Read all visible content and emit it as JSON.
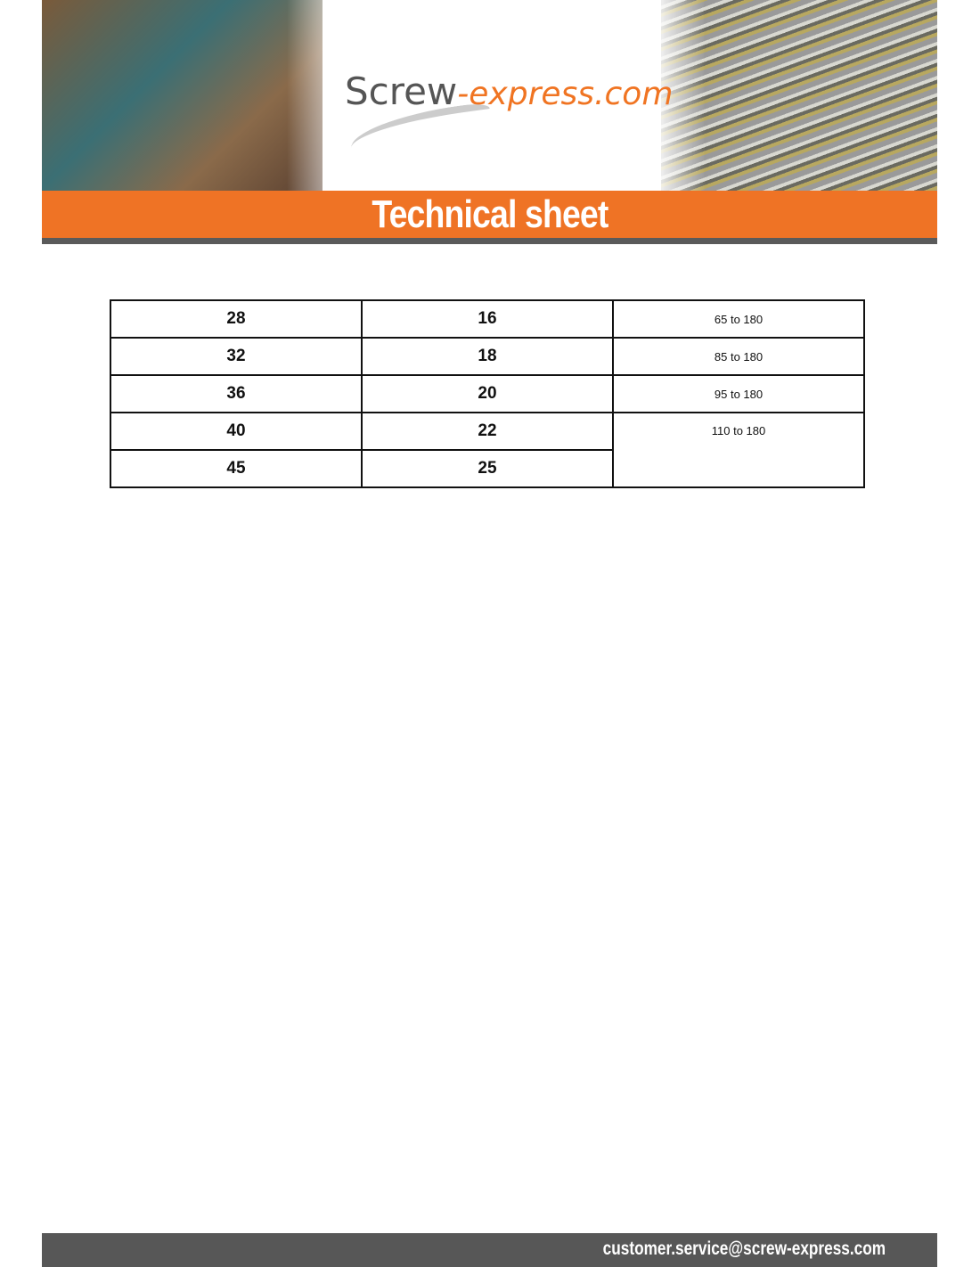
{
  "header": {
    "logo_part1": "Screw",
    "logo_part2": "-express.com",
    "title": "Technical sheet"
  },
  "table": {
    "rows": [
      {
        "c1": "28",
        "c2": "16",
        "c3": "65 to 180"
      },
      {
        "c1": "32",
        "c2": "18",
        "c3": "85 to 180"
      },
      {
        "c1": "36",
        "c2": "20",
        "c3": "95 to 180"
      },
      {
        "c1": "40",
        "c2": "22",
        "c3": "110 to 180"
      },
      {
        "c1": "45",
        "c2": "25"
      }
    ]
  },
  "footer": {
    "email": "customer.service@screw-express.com"
  },
  "colors": {
    "accent": "#ef7325",
    "bar": "#575757"
  }
}
